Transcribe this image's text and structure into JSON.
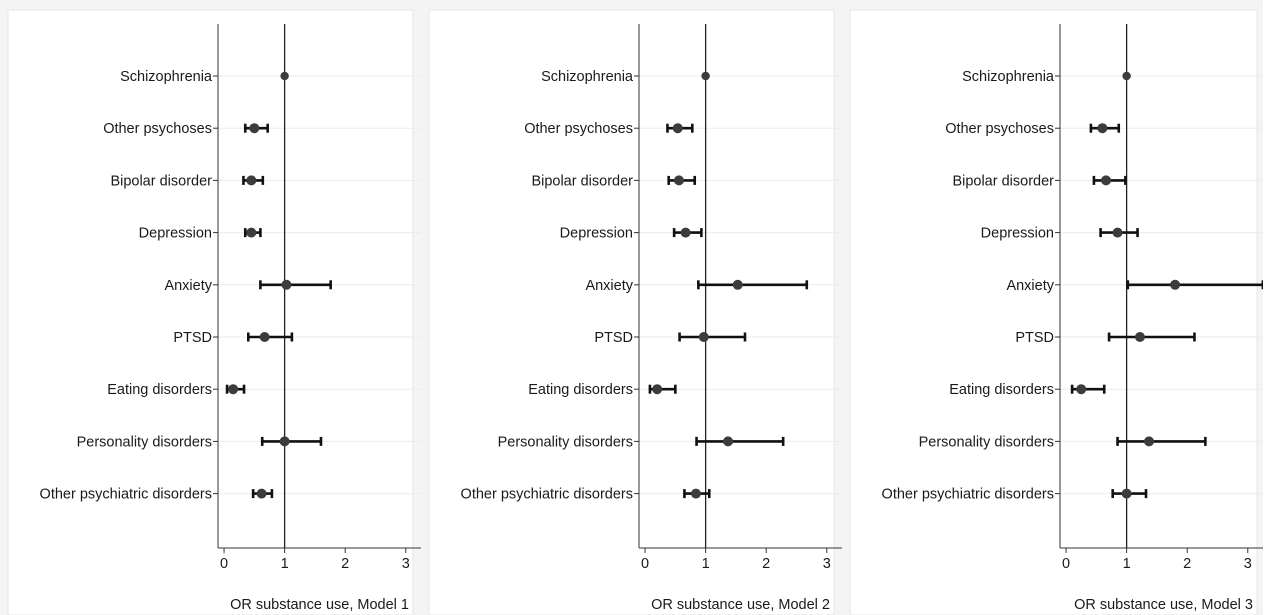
{
  "colors": {
    "panel_bg": "#f4f4f4",
    "plot_bg": "#ffffff",
    "frame": "#e6e6e6",
    "grid": "#ebebeb",
    "axis": "#333333",
    "reference_line": "#222222",
    "marker": "#3c3c3c",
    "errorbar": "#111111",
    "text": "#1a1a1a"
  },
  "chart_data": [
    {
      "type": "scatter",
      "style": "forest-plot with 95% confidence interval error bars",
      "xlabel": "OR substance use, Model 1",
      "xlim": [
        -0.1,
        3.4
      ],
      "xticks": [
        0,
        1,
        2,
        3
      ],
      "reference_line_x": 1,
      "grid": "horizontal only",
      "categories": [
        "Schizophrenia",
        "Other psychoses",
        "Bipolar disorder",
        "Depression",
        "Anxiety",
        "PTSD",
        "Eating disorders",
        "Personality disorders",
        "Other psychiatric disorders"
      ],
      "estimates": [
        1.0,
        0.5,
        0.45,
        0.45,
        1.03,
        0.67,
        0.15,
        1.0,
        0.62
      ],
      "ci_low": [
        1.0,
        0.35,
        0.32,
        0.35,
        0.6,
        0.4,
        0.05,
        0.63,
        0.48
      ],
      "ci_high": [
        1.0,
        0.72,
        0.64,
        0.6,
        1.76,
        1.12,
        0.33,
        1.6,
        0.79
      ]
    },
    {
      "type": "scatter",
      "style": "forest-plot with 95% confidence interval error bars",
      "xlabel": "OR substance use, Model 2",
      "xlim": [
        -0.1,
        3.4
      ],
      "xticks": [
        0,
        1,
        2,
        3
      ],
      "reference_line_x": 1,
      "grid": "horizontal only",
      "categories": [
        "Schizophrenia",
        "Other psychoses",
        "Bipolar disorder",
        "Depression",
        "Anxiety",
        "PTSD",
        "Eating disorders",
        "Personality disorders",
        "Other psychiatric disorders"
      ],
      "estimates": [
        1.0,
        0.54,
        0.56,
        0.67,
        1.53,
        0.97,
        0.2,
        1.37,
        0.84
      ],
      "ci_low": [
        1.0,
        0.37,
        0.39,
        0.48,
        0.88,
        0.57,
        0.08,
        0.85,
        0.65
      ],
      "ci_high": [
        1.0,
        0.78,
        0.82,
        0.93,
        2.67,
        1.65,
        0.5,
        2.28,
        1.06
      ]
    },
    {
      "type": "scatter",
      "style": "forest-plot with 95% confidence interval error bars",
      "xlabel": "OR substance use, Model 3",
      "xlim": [
        -0.1,
        3.4
      ],
      "xticks": [
        0,
        1,
        2,
        3
      ],
      "reference_line_x": 1,
      "grid": "horizontal only",
      "categories": [
        "Schizophrenia",
        "Other psychoses",
        "Bipolar disorder",
        "Depression",
        "Anxiety",
        "PTSD",
        "Eating disorders",
        "Personality disorders",
        "Other psychiatric disorders"
      ],
      "estimates": [
        1.0,
        0.6,
        0.66,
        0.85,
        1.8,
        1.22,
        0.25,
        1.37,
        1.0
      ],
      "ci_low": [
        1.0,
        0.41,
        0.46,
        0.57,
        1.02,
        0.71,
        0.1,
        0.85,
        0.77
      ],
      "ci_high": [
        1.0,
        0.87,
        0.98,
        1.18,
        3.25,
        2.12,
        0.63,
        2.3,
        1.32
      ]
    }
  ]
}
